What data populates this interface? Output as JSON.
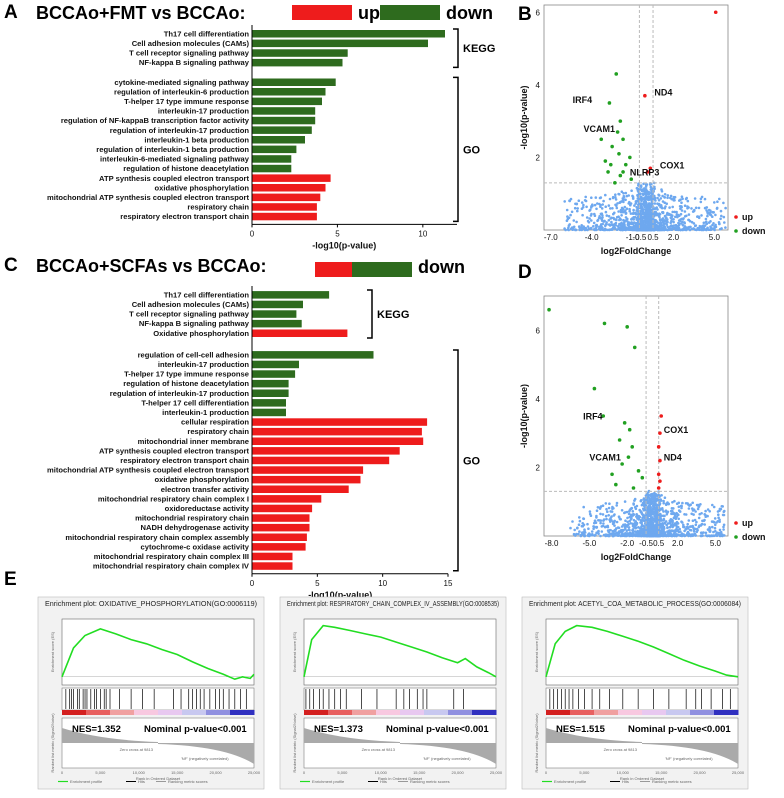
{
  "colors": {
    "up": "#ee1c1c",
    "down": "#2e6b1e",
    "scatter": "#6ea8ef",
    "sig_up": "#ee1c1c",
    "sig_down": "#21a021",
    "es": "#22dd22"
  },
  "panels": {
    "A": "A",
    "B": "B",
    "C": "C",
    "D": "D",
    "E": "E"
  },
  "chart_data": [
    {
      "id": "A",
      "type": "bar",
      "orientation": "horizontal",
      "title": "BCCAo+FMT vs BCCAo:",
      "legend": {
        "up": "up",
        "down": "down"
      },
      "xlabel": "-log10(p-value)",
      "xlim": [
        0,
        12
      ],
      "xticks": [
        0,
        5,
        10
      ],
      "groups": [
        {
          "name": "KEGG",
          "bars": [
            {
              "label": "Th17 cell differentiation",
              "value": 11.3,
              "dir": "down"
            },
            {
              "label": "Cell adhesion molecules (CAMs)",
              "value": 10.3,
              "dir": "down"
            },
            {
              "label": "T cell receptor signaling pathway",
              "value": 5.6,
              "dir": "down"
            },
            {
              "label": "NF-kappa B signaling pathway",
              "value": 5.3,
              "dir": "down"
            }
          ]
        },
        {
          "name": "GO",
          "bars": [
            {
              "label": "cytokine-mediated signaling pathway",
              "value": 4.9,
              "dir": "down"
            },
            {
              "label": "regulation of interleukin-6 production",
              "value": 4.3,
              "dir": "down"
            },
            {
              "label": "T-helper 17 type immune response",
              "value": 4.1,
              "dir": "down"
            },
            {
              "label": "interleukin-17 production",
              "value": 3.7,
              "dir": "down"
            },
            {
              "label": "regulation of NF-kappaB transcription factor activity",
              "value": 3.7,
              "dir": "down"
            },
            {
              "label": "regulation of interleukin-17 production",
              "value": 3.5,
              "dir": "down"
            },
            {
              "label": "interleukin-1 beta production",
              "value": 3.1,
              "dir": "down"
            },
            {
              "label": "regulation of interleukin-1 beta production",
              "value": 2.6,
              "dir": "down"
            },
            {
              "label": "interleukin-6-mediated signaling pathway",
              "value": 2.3,
              "dir": "down"
            },
            {
              "label": "regulation of histone deacetylation",
              "value": 2.3,
              "dir": "down"
            },
            {
              "label": "ATP synthesis coupled electron transport",
              "value": 4.6,
              "dir": "up"
            },
            {
              "label": "oxidative phosphorylation",
              "value": 4.3,
              "dir": "up"
            },
            {
              "label": "mitochondrial ATP synthesis coupled electron transport",
              "value": 4.0,
              "dir": "up"
            },
            {
              "label": "respiratory chain",
              "value": 3.8,
              "dir": "up"
            },
            {
              "label": "respiratory electron transport chain",
              "value": 3.8,
              "dir": "up"
            }
          ]
        }
      ]
    },
    {
      "id": "B",
      "type": "scatter",
      "xlabel": "log2FoldChange",
      "ylabel": "-log10(p-value)",
      "xlim": [
        -7.5,
        6.0
      ],
      "ylim": [
        0,
        6.2
      ],
      "xticks": [
        "-7.0",
        "-4.0",
        "-1.0",
        "-0.5",
        "0.5",
        "2.0",
        "5.0"
      ],
      "xtick_values": [
        -7.0,
        -4.0,
        -1.0,
        -0.5,
        0.5,
        2.0,
        5.0
      ],
      "yticks": [
        "2",
        "4",
        "6"
      ],
      "ytick_values": [
        2,
        4,
        6
      ],
      "legend": {
        "up": "up",
        "down": "down"
      },
      "annotations": [
        {
          "text": "ND4",
          "x": 0.6,
          "y": 3.7
        },
        {
          "text": "IRF4",
          "x": -5.4,
          "y": 3.5
        },
        {
          "text": "VCAM1",
          "x": -4.6,
          "y": 2.7
        },
        {
          "text": "COX1",
          "x": 1.0,
          "y": 1.7
        },
        {
          "text": "NLRP3",
          "x": -1.2,
          "y": 1.5
        }
      ],
      "sig_up": [
        [
          5.1,
          6.0
        ],
        [
          -0.1,
          3.7
        ],
        [
          0.3,
          1.7
        ],
        [
          0.1,
          1.6
        ]
      ],
      "sig_down": [
        [
          -2.2,
          4.3
        ],
        [
          -2.7,
          3.5
        ],
        [
          -1.9,
          3.0
        ],
        [
          -2.1,
          2.7
        ],
        [
          -2.5,
          2.3
        ],
        [
          -1.7,
          2.5
        ],
        [
          -2.0,
          2.1
        ],
        [
          -1.2,
          2.0
        ],
        [
          -3.0,
          1.9
        ],
        [
          -2.6,
          1.8
        ],
        [
          -1.5,
          1.8
        ],
        [
          -2.8,
          1.6
        ],
        [
          -1.9,
          1.5
        ],
        [
          -1.1,
          1.4
        ],
        [
          -2.3,
          1.3
        ],
        [
          -1.7,
          1.6
        ],
        [
          -3.3,
          2.5
        ]
      ],
      "threshold": {
        "y": 1.3,
        "x": [
          -0.5,
          0.5
        ]
      }
    },
    {
      "id": "C",
      "type": "bar",
      "orientation": "horizontal",
      "title": "BCCAo+SCFAs vs BCCAo:",
      "legend": {
        "up": "up",
        "down": "down"
      },
      "xlabel": "-log10(p-value)",
      "xlim": [
        0,
        15
      ],
      "xticks": [
        0,
        5,
        10,
        15
      ],
      "groups": [
        {
          "name": "KEGG",
          "bars": [
            {
              "label": "Th17 cell differentiation",
              "value": 5.9,
              "dir": "down"
            },
            {
              "label": "Cell adhesion molecules (CAMs)",
              "value": 3.9,
              "dir": "down"
            },
            {
              "label": "T cell receptor signaling pathway",
              "value": 3.4,
              "dir": "down"
            },
            {
              "label": "NF-kappa B signaling pathway",
              "value": 3.8,
              "dir": "down"
            },
            {
              "label": "Oxidative phosphorylation",
              "value": 7.3,
              "dir": "up"
            }
          ]
        },
        {
          "name": "GO",
          "bars": [
            {
              "label": "regulation of cell-cell adhesion",
              "value": 9.3,
              "dir": "down"
            },
            {
              "label": "interleukin-17 production",
              "value": 3.6,
              "dir": "down"
            },
            {
              "label": "T-helper 17 type immune response",
              "value": 3.3,
              "dir": "down"
            },
            {
              "label": "regulation of histone deacetylation",
              "value": 2.8,
              "dir": "down"
            },
            {
              "label": "regulation of interleukin-17 production",
              "value": 2.8,
              "dir": "down"
            },
            {
              "label": "T-helper 17 cell differentiation",
              "value": 2.6,
              "dir": "down"
            },
            {
              "label": "interleukin-1 production",
              "value": 2.6,
              "dir": "down"
            },
            {
              "label": "cellular respiration",
              "value": 13.4,
              "dir": "up"
            },
            {
              "label": "respiratory chain",
              "value": 13.0,
              "dir": "up"
            },
            {
              "label": "mitochondrial inner membrane",
              "value": 13.1,
              "dir": "up"
            },
            {
              "label": "ATP synthesis coupled electron transport",
              "value": 11.3,
              "dir": "up"
            },
            {
              "label": "respiratory electron transport chain",
              "value": 10.5,
              "dir": "up"
            },
            {
              "label": "mitochondrial ATP synthesis coupled electron transport",
              "value": 8.5,
              "dir": "up"
            },
            {
              "label": "oxidative phosphorylation",
              "value": 8.3,
              "dir": "up"
            },
            {
              "label": "electron transfer activity",
              "value": 7.4,
              "dir": "up"
            },
            {
              "label": "mitochondrial respiratory chain complex I",
              "value": 5.3,
              "dir": "up"
            },
            {
              "label": "oxidoreductase activity",
              "value": 4.6,
              "dir": "up"
            },
            {
              "label": "mitochondrial respiratory chain",
              "value": 4.4,
              "dir": "up"
            },
            {
              "label": "NADH dehydrogenase activity",
              "value": 4.4,
              "dir": "up"
            },
            {
              "label": "mitochondrial respiratory chain complex assembly",
              "value": 4.2,
              "dir": "up"
            },
            {
              "label": "cytochrome-c oxidase activity",
              "value": 4.1,
              "dir": "up"
            },
            {
              "label": "mitochondrial respiratory chain complex III",
              "value": 3.1,
              "dir": "up"
            },
            {
              "label": "mitochondrial respiratory chain complex IV",
              "value": 3.1,
              "dir": "up"
            }
          ]
        }
      ]
    },
    {
      "id": "D",
      "type": "scatter",
      "xlabel": "log2FoldChange",
      "ylabel": "-log10(p-value)",
      "xlim": [
        -8.6,
        6.0
      ],
      "ylim": [
        0,
        7.0
      ],
      "xticks": [
        "-8.0",
        "-5.0",
        "-2.0",
        "-0.5",
        "0.5",
        "2.0",
        "5.0"
      ],
      "xtick_values": [
        -8.0,
        -5.0,
        -2.0,
        -0.5,
        0.5,
        2.0,
        5.0
      ],
      "yticks": [
        "2",
        "4",
        "6"
      ],
      "ytick_values": [
        2,
        4,
        6
      ],
      "legend": {
        "up": "up",
        "down": "down"
      },
      "annotations": [
        {
          "text": "IRF4",
          "x": -5.5,
          "y": 3.4
        },
        {
          "text": "COX1",
          "x": 0.9,
          "y": 3.0
        },
        {
          "text": "VCAM1",
          "x": -5.0,
          "y": 2.2
        },
        {
          "text": "ND4",
          "x": 0.9,
          "y": 2.2
        }
      ],
      "sig_up": [
        [
          0.7,
          3.5
        ],
        [
          0.6,
          3.0
        ],
        [
          0.5,
          2.6
        ],
        [
          0.6,
          2.2
        ],
        [
          0.5,
          1.8
        ],
        [
          0.6,
          1.6
        ],
        [
          0.5,
          1.4
        ]
      ],
      "sig_down": [
        [
          -8.2,
          6.6
        ],
        [
          -3.8,
          6.2
        ],
        [
          -2.0,
          6.1
        ],
        [
          -1.4,
          5.5
        ],
        [
          -4.6,
          4.3
        ],
        [
          -3.9,
          3.5
        ],
        [
          -2.2,
          3.3
        ],
        [
          -1.8,
          3.1
        ],
        [
          -2.6,
          2.8
        ],
        [
          -1.6,
          2.6
        ],
        [
          -1.9,
          2.3
        ],
        [
          -2.4,
          2.1
        ],
        [
          -1.1,
          1.9
        ],
        [
          -3.2,
          1.8
        ],
        [
          -0.8,
          1.7
        ],
        [
          -2.9,
          1.5
        ],
        [
          -1.5,
          1.4
        ]
      ],
      "threshold": {
        "y": 1.3,
        "x": [
          -0.5,
          0.5
        ]
      }
    },
    {
      "id": "E",
      "type": "line",
      "subtype": "gsea",
      "plots": [
        {
          "title": "Enrichment plot: OXIDATIVE_PHOSPHORYLATION(GO:0006119)",
          "nes": "NES=1.352",
          "pval": "Nominal p-value<0.001",
          "es_x": [
            0,
            1500,
            3000,
            5000,
            7000,
            9000,
            11000,
            13000,
            15000,
            17000,
            19000,
            21000,
            22500,
            23500,
            24500,
            25000
          ],
          "es_y": [
            0.0,
            0.35,
            0.5,
            0.58,
            0.52,
            0.45,
            0.4,
            0.33,
            0.27,
            0.18,
            0.1,
            0.03,
            -0.03,
            0.0,
            -0.02,
            0.03
          ]
        },
        {
          "title": "Enrichment plot: RESPIRATORY_CHAIN_COMPLEX_IV_ASSEMBLY(GO:0008535)",
          "nes": "NES=1.373",
          "pval": "Nominal p-value<0.001",
          "es_x": [
            0,
            1000,
            2500,
            4000,
            6000,
            8000,
            10000,
            12000,
            14000,
            16000,
            18000,
            20000,
            21000,
            22500,
            24000,
            25000
          ],
          "es_y": [
            0.0,
            0.45,
            0.62,
            0.6,
            0.56,
            0.52,
            0.48,
            0.42,
            0.36,
            0.3,
            0.23,
            0.17,
            0.22,
            0.12,
            0.05,
            0.0
          ]
        },
        {
          "title": "Enrichment plot: ACETYL_COA_METABOLIC_PROCESS(GO:0006084)",
          "nes": "NES=1.515",
          "pval": "Nominal p-value<0.001",
          "es_x": [
            0,
            1200,
            2500,
            4000,
            6000,
            8000,
            10000,
            12000,
            14000,
            16000,
            18000,
            20000,
            22000,
            23500,
            25000
          ],
          "es_y": [
            0.0,
            0.4,
            0.55,
            0.62,
            0.6,
            0.55,
            0.49,
            0.43,
            0.36,
            0.28,
            0.2,
            0.13,
            0.07,
            0.02,
            0.0
          ]
        }
      ],
      "xlabel": "Rank in Ordered Dataset",
      "ylabel": "Enrichment score (ES)",
      "ylabel2": "Ranked list metric (Signal2Noise)",
      "xticks": [
        "0",
        "5,000",
        "10,000",
        "15,000",
        "20,000",
        "25,000"
      ],
      "xtick_values": [
        0,
        5000,
        10000,
        15000,
        20000,
        25000
      ],
      "pos_label": "'NS' (positively correlated)",
      "neg_label": "'NF' (negatively correlated)",
      "zero_cross": "Zero cross at 9813",
      "legend": [
        "Enrichment profile",
        "Hits",
        "Ranking metric scores"
      ]
    }
  ]
}
